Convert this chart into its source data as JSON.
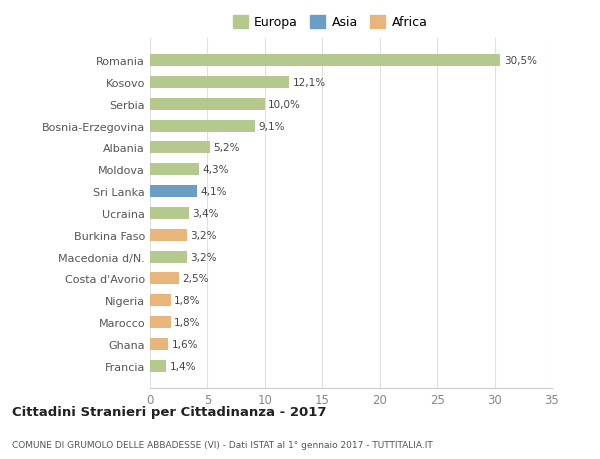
{
  "countries": [
    "Francia",
    "Ghana",
    "Marocco",
    "Nigeria",
    "Costa d'Avorio",
    "Macedonia d/N.",
    "Burkina Faso",
    "Ucraina",
    "Sri Lanka",
    "Moldova",
    "Albania",
    "Bosnia-Erzegovina",
    "Serbia",
    "Kosovo",
    "Romania"
  ],
  "values": [
    1.4,
    1.6,
    1.8,
    1.8,
    2.5,
    3.2,
    3.2,
    3.4,
    4.1,
    4.3,
    5.2,
    9.1,
    10.0,
    12.1,
    30.5
  ],
  "labels": [
    "1,4%",
    "1,6%",
    "1,8%",
    "1,8%",
    "2,5%",
    "3,2%",
    "3,2%",
    "3,4%",
    "4,1%",
    "4,3%",
    "5,2%",
    "9,1%",
    "10,0%",
    "12,1%",
    "30,5%"
  ],
  "colors": [
    "#b5c98e",
    "#e8b57a",
    "#e8b57a",
    "#e8b57a",
    "#e8b57a",
    "#b5c98e",
    "#e8b57a",
    "#b5c98e",
    "#6a9ec5",
    "#b5c98e",
    "#b5c98e",
    "#b5c98e",
    "#b5c98e",
    "#b5c98e",
    "#b5c98e"
  ],
  "legend": [
    {
      "label": "Europa",
      "color": "#b5c98e"
    },
    {
      "label": "Asia",
      "color": "#6a9ec5"
    },
    {
      "label": "Africa",
      "color": "#e8b57a"
    }
  ],
  "title": "Cittadini Stranieri per Cittadinanza - 2017",
  "subtitle": "COMUNE DI GRUMOLO DELLE ABBADESSE (VI) - Dati ISTAT al 1° gennaio 2017 - TUTTITALIA.IT",
  "xlim": [
    0,
    35
  ],
  "xticks": [
    0,
    5,
    10,
    15,
    20,
    25,
    30,
    35
  ],
  "background_color": "#ffffff",
  "grid_color": "#e0e0e0"
}
